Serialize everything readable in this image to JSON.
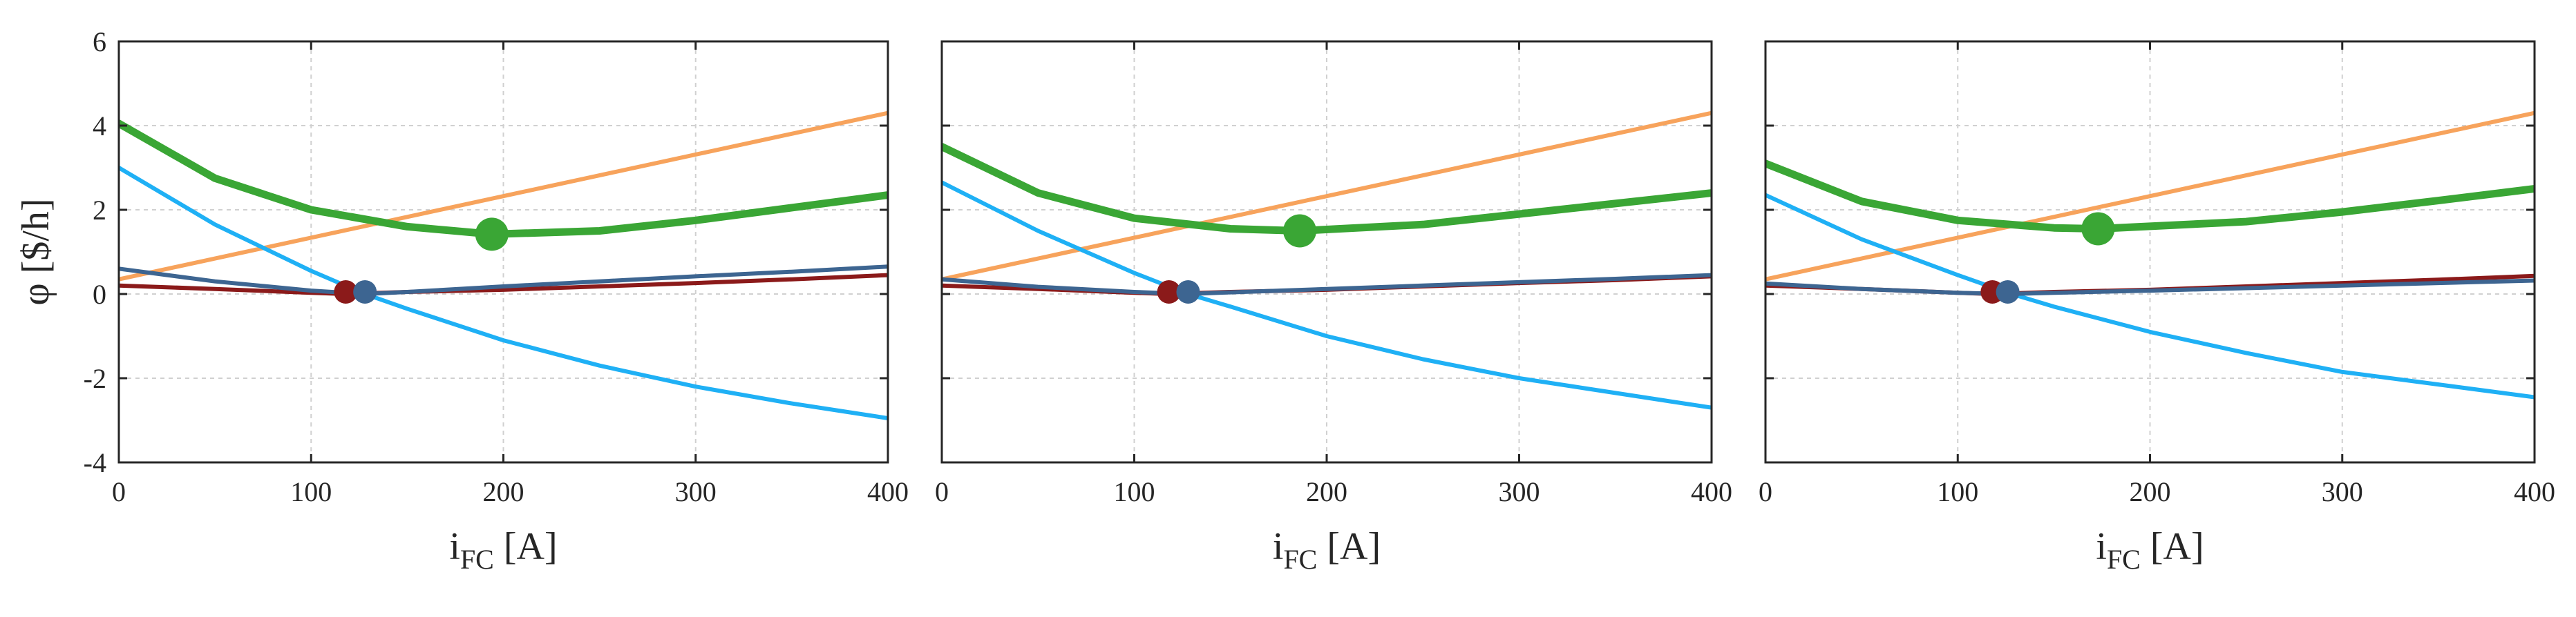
{
  "chart_data": [
    {
      "type": "line",
      "panel": "left",
      "xlabel": "i_FC [A]",
      "ylabel": "φ [$/h]",
      "xlim": [
        0,
        400
      ],
      "ylim": [
        -4,
        6
      ],
      "xticks": [
        0,
        100,
        200,
        300,
        400
      ],
      "yticks": [
        -4,
        -2,
        0,
        2,
        4,
        6
      ],
      "xtick_labels": [
        "0",
        "100",
        "200",
        "300",
        "400"
      ],
      "ytick_labels": [
        "-4",
        "-2",
        "0",
        "2",
        "4",
        "6"
      ],
      "grid": true,
      "series": [
        {
          "name": "orange",
          "color": "#f7a35c",
          "width": 6,
          "x": [
            0,
            400
          ],
          "y": [
            0.35,
            4.3
          ]
        },
        {
          "name": "blue",
          "color": "#1fb0f5",
          "width": 6,
          "x": [
            0,
            50,
            100,
            128,
            150,
            200,
            250,
            300,
            350,
            400
          ],
          "y": [
            3.0,
            1.65,
            0.55,
            0.0,
            -0.35,
            -1.1,
            -1.7,
            -2.2,
            -2.6,
            -2.95
          ]
        },
        {
          "name": "green",
          "color": "#3aa635",
          "width": 11,
          "x": [
            0,
            50,
            100,
            150,
            194,
            250,
            300,
            350,
            400
          ],
          "y": [
            4.05,
            2.75,
            2.0,
            1.6,
            1.42,
            1.5,
            1.75,
            2.05,
            2.35
          ]
        },
        {
          "name": "dark-red",
          "color": "#8b1a1a",
          "width": 6,
          "x": [
            0,
            50,
            100,
            118,
            150,
            200,
            250,
            300,
            350,
            400
          ],
          "y": [
            0.2,
            0.12,
            0.03,
            0.0,
            0.05,
            0.1,
            0.18,
            0.26,
            0.35,
            0.45
          ]
        },
        {
          "name": "steel-blue",
          "color": "#3d6591",
          "width": 6,
          "x": [
            0,
            50,
            100,
            128,
            150,
            200,
            250,
            300,
            350,
            400
          ],
          "y": [
            0.6,
            0.3,
            0.08,
            0.0,
            0.05,
            0.18,
            0.3,
            0.42,
            0.53,
            0.65
          ]
        }
      ],
      "markers": [
        {
          "name": "green-optimum",
          "color": "#3aa635",
          "x": 194,
          "y": 1.42,
          "r": 24
        },
        {
          "name": "dark-red-optimum",
          "color": "#8b1a1a",
          "x": 118,
          "y": 0.05,
          "r": 17
        },
        {
          "name": "steel-blue-optimum",
          "color": "#3d6591",
          "x": 128,
          "y": 0.05,
          "r": 17
        }
      ]
    },
    {
      "type": "line",
      "panel": "middle",
      "xlabel": "i_FC [A]",
      "ylabel": "",
      "xlim": [
        0,
        400
      ],
      "ylim": [
        -4,
        6
      ],
      "xticks": [
        0,
        100,
        200,
        300,
        400
      ],
      "yticks": [
        -4,
        -2,
        0,
        2,
        4,
        6
      ],
      "xtick_labels": [
        "0",
        "100",
        "200",
        "300",
        "400"
      ],
      "ytick_labels": [],
      "grid": true,
      "series": [
        {
          "name": "orange",
          "color": "#f7a35c",
          "width": 6,
          "x": [
            0,
            400
          ],
          "y": [
            0.35,
            4.3
          ]
        },
        {
          "name": "blue",
          "color": "#1fb0f5",
          "width": 6,
          "x": [
            0,
            50,
            100,
            128,
            150,
            200,
            250,
            300,
            350,
            400
          ],
          "y": [
            2.65,
            1.5,
            0.5,
            0.0,
            -0.3,
            -1.0,
            -1.55,
            -2.0,
            -2.35,
            -2.7
          ]
        },
        {
          "name": "green",
          "color": "#3aa635",
          "width": 11,
          "x": [
            0,
            50,
            100,
            150,
            186,
            250,
            300,
            350,
            400
          ],
          "y": [
            3.5,
            2.4,
            1.8,
            1.55,
            1.5,
            1.65,
            1.9,
            2.15,
            2.4
          ]
        },
        {
          "name": "dark-red",
          "color": "#8b1a1a",
          "width": 6,
          "x": [
            0,
            50,
            100,
            118,
            150,
            200,
            250,
            300,
            350,
            400
          ],
          "y": [
            0.2,
            0.12,
            0.03,
            0.0,
            0.05,
            0.1,
            0.18,
            0.26,
            0.33,
            0.42
          ]
        },
        {
          "name": "steel-blue",
          "color": "#3d6591",
          "width": 6,
          "x": [
            0,
            50,
            100,
            128,
            150,
            200,
            250,
            300,
            350,
            400
          ],
          "y": [
            0.35,
            0.17,
            0.05,
            0.0,
            0.04,
            0.12,
            0.2,
            0.28,
            0.36,
            0.45
          ]
        }
      ],
      "markers": [
        {
          "name": "green-optimum",
          "color": "#3aa635",
          "x": 186,
          "y": 1.5,
          "r": 24
        },
        {
          "name": "dark-red-optimum",
          "color": "#8b1a1a",
          "x": 118,
          "y": 0.05,
          "r": 17
        },
        {
          "name": "steel-blue-optimum",
          "color": "#3d6591",
          "x": 128,
          "y": 0.05,
          "r": 17
        }
      ]
    },
    {
      "type": "line",
      "panel": "right",
      "xlabel": "i_FC [A]",
      "ylabel": "",
      "xlim": [
        0,
        400
      ],
      "ylim": [
        -4,
        6
      ],
      "xticks": [
        0,
        100,
        200,
        300,
        400
      ],
      "yticks": [
        -4,
        -2,
        0,
        2,
        4,
        6
      ],
      "xtick_labels": [
        "0",
        "100",
        "200",
        "300",
        "400"
      ],
      "ytick_labels": [],
      "grid": true,
      "series": [
        {
          "name": "orange",
          "color": "#f7a35c",
          "width": 6,
          "x": [
            0,
            400
          ],
          "y": [
            0.35,
            4.3
          ]
        },
        {
          "name": "blue",
          "color": "#1fb0f5",
          "width": 6,
          "x": [
            0,
            50,
            100,
            128,
            150,
            200,
            250,
            300,
            350,
            400
          ],
          "y": [
            2.35,
            1.3,
            0.45,
            0.0,
            -0.3,
            -0.9,
            -1.4,
            -1.85,
            -2.15,
            -2.45
          ]
        },
        {
          "name": "green",
          "color": "#3aa635",
          "width": 11,
          "x": [
            0,
            50,
            100,
            150,
            173,
            250,
            300,
            350,
            400
          ],
          "y": [
            3.1,
            2.2,
            1.75,
            1.57,
            1.55,
            1.72,
            1.95,
            2.22,
            2.5
          ]
        },
        {
          "name": "dark-red",
          "color": "#8b1a1a",
          "width": 6,
          "x": [
            0,
            50,
            100,
            118,
            150,
            200,
            250,
            300,
            350,
            400
          ],
          "y": [
            0.2,
            0.12,
            0.03,
            0.0,
            0.05,
            0.1,
            0.18,
            0.26,
            0.34,
            0.43
          ]
        },
        {
          "name": "steel-blue",
          "color": "#3d6591",
          "width": 6,
          "x": [
            0,
            50,
            100,
            126,
            150,
            200,
            250,
            300,
            350,
            400
          ],
          "y": [
            0.25,
            0.12,
            0.03,
            0.0,
            0.03,
            0.08,
            0.14,
            0.2,
            0.26,
            0.32
          ]
        }
      ],
      "markers": [
        {
          "name": "green-optimum",
          "color": "#3aa635",
          "x": 173,
          "y": 1.55,
          "r": 24
        },
        {
          "name": "dark-red-optimum",
          "color": "#8b1a1a",
          "x": 118,
          "y": 0.05,
          "r": 17
        },
        {
          "name": "steel-blue-optimum",
          "color": "#3d6591",
          "x": 126,
          "y": 0.05,
          "r": 17
        }
      ]
    }
  ]
}
